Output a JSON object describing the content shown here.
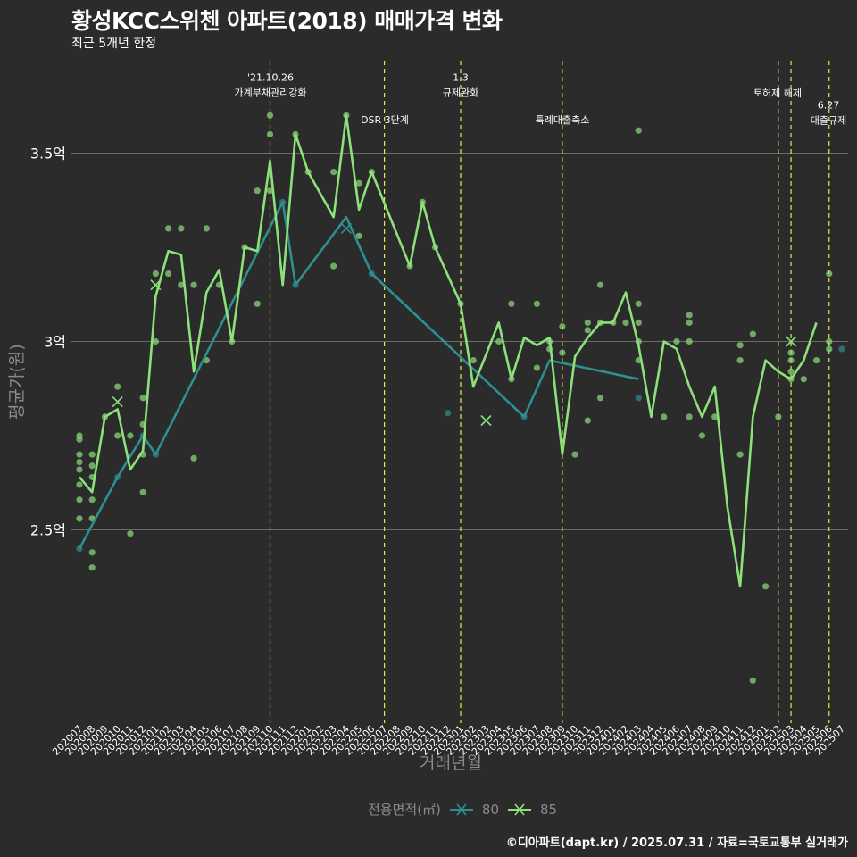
{
  "title": "황성KCC스위첸 아파트(2018) 매매가격 변화",
  "subtitle": "최근 5개년 한정",
  "caption": "©디아파트(dapt.kr) / 2025.07.31 / 자료=국토교통부 실거래가",
  "colors": {
    "background": "#2b2b2c",
    "grid": "#6a6a6a",
    "vline": "#e8e84a",
    "s80": "#2e8f8f",
    "s85": "#8de07a",
    "text": "#ffffff",
    "axis_text": "#8a8a8a"
  },
  "chart_data": {
    "type": "line",
    "xlabel": "거래년월",
    "ylabel": "평균가(원)",
    "ylim": [
      2.0,
      3.75
    ],
    "yticks": [
      {
        "value": 2.5,
        "label": "2.5억"
      },
      {
        "value": 3.0,
        "label": "3억"
      },
      {
        "value": 3.5,
        "label": "3.5억"
      }
    ],
    "grid": true,
    "legend": {
      "title": "전용면적(㎡)",
      "position": "bottom",
      "entries": [
        "80",
        "85"
      ]
    },
    "categories": [
      "202007",
      "202008",
      "202009",
      "202010",
      "202011",
      "202012",
      "202101",
      "202102",
      "202103",
      "202104",
      "202105",
      "202106",
      "202107",
      "202108",
      "202109",
      "202110",
      "202111",
      "202112",
      "202201",
      "202202",
      "202203",
      "202204",
      "202205",
      "202206",
      "202207",
      "202208",
      "202209",
      "202210",
      "202211",
      "202212",
      "202301",
      "202302",
      "202303",
      "202304",
      "202305",
      "202306",
      "202307",
      "202308",
      "202309",
      "202310",
      "202311",
      "202312",
      "202401",
      "202402",
      "202403",
      "202404",
      "202405",
      "202406",
      "202407",
      "202408",
      "202409",
      "202410",
      "202411",
      "202412",
      "202501",
      "202502",
      "202503",
      "202504",
      "202505",
      "202506",
      "202507"
    ],
    "events": [
      {
        "x": "202110",
        "label_lines": [
          "'21.10.26",
          "가계부채관리강화"
        ]
      },
      {
        "x": "202207",
        "label_lines": [
          "DSR 3단계"
        ]
      },
      {
        "x": "202301",
        "label_lines": [
          "1.3",
          "규제완화"
        ]
      },
      {
        "x": "202309",
        "label_lines": [
          "특례대출축소"
        ]
      },
      {
        "x": "202502",
        "label_lines": [
          "토허제 해제"
        ]
      },
      {
        "x": "202503",
        "label_lines": []
      },
      {
        "x": "202506",
        "label_lines": [
          "6.27",
          "대출규제"
        ]
      }
    ],
    "series": [
      {
        "name": "80",
        "line": [
          [
            "202007",
            2.45
          ],
          [
            "202010",
            2.64
          ],
          [
            "202012",
            2.75
          ],
          [
            "202101",
            2.7
          ],
          [
            "202111",
            3.37
          ],
          [
            "202112",
            3.15
          ],
          [
            "202204",
            3.33
          ],
          [
            "202206",
            3.18
          ],
          [
            "202306",
            2.8
          ],
          [
            "202308",
            2.95
          ],
          [
            "202403",
            2.9
          ]
        ],
        "points": [
          [
            "202007",
            2.45
          ],
          [
            "202010",
            2.64
          ],
          [
            "202012",
            2.75
          ],
          [
            "202101",
            2.7
          ],
          [
            "202111",
            3.37
          ],
          [
            "202112",
            3.15
          ],
          [
            "202206",
            3.18
          ],
          [
            "202212",
            2.81
          ],
          [
            "202306",
            2.8
          ],
          [
            "202403",
            2.85
          ],
          [
            "202507",
            2.98
          ]
        ],
        "cross_points": [
          [
            "202204",
            3.3
          ],
          [
            "202303",
            2.79
          ]
        ]
      },
      {
        "name": "85",
        "line": [
          [
            "202007",
            2.64
          ],
          [
            "202008",
            2.6
          ],
          [
            "202009",
            2.8
          ],
          [
            "202010",
            2.82
          ],
          [
            "202011",
            2.66
          ],
          [
            "202012",
            2.71
          ],
          [
            "202101",
            3.12
          ],
          [
            "202102",
            3.24
          ],
          [
            "202103",
            3.23
          ],
          [
            "202104",
            2.92
          ],
          [
            "202105",
            3.13
          ],
          [
            "202106",
            3.19
          ],
          [
            "202107",
            3.0
          ],
          [
            "202108",
            3.25
          ],
          [
            "202109",
            3.24
          ],
          [
            "202110",
            3.48
          ],
          [
            "202111",
            3.15
          ],
          [
            "202112",
            3.55
          ],
          [
            "202201",
            3.45
          ],
          [
            "202202",
            3.39
          ],
          [
            "202203",
            3.33
          ],
          [
            "202204",
            3.6
          ],
          [
            "202205",
            3.35
          ],
          [
            "202206",
            3.45
          ],
          [
            "202209",
            3.2
          ],
          [
            "202210",
            3.37
          ],
          [
            "202211",
            3.25
          ],
          [
            "202301",
            3.1
          ],
          [
            "202302",
            2.88
          ],
          [
            "202304",
            3.05
          ],
          [
            "202305",
            2.9
          ],
          [
            "202306",
            3.01
          ],
          [
            "202307",
            2.99
          ],
          [
            "202308",
            3.01
          ],
          [
            "202309",
            2.7
          ],
          [
            "202310",
            2.96
          ],
          [
            "202311",
            3.01
          ],
          [
            "202312",
            3.05
          ],
          [
            "202401",
            3.05
          ],
          [
            "202402",
            3.13
          ],
          [
            "202403",
            2.99
          ],
          [
            "202404",
            2.8
          ],
          [
            "202405",
            3.0
          ],
          [
            "202406",
            2.98
          ],
          [
            "202407",
            2.88
          ],
          [
            "202408",
            2.8
          ],
          [
            "202409",
            2.88
          ],
          [
            "202410",
            2.56
          ],
          [
            "202411",
            2.35
          ],
          [
            "202412",
            2.8
          ],
          [
            "202501",
            2.95
          ],
          [
            "202502",
            2.92
          ],
          [
            "202503",
            2.9
          ],
          [
            "202504",
            2.95
          ],
          [
            "202505",
            3.05
          ]
        ],
        "points": [
          [
            "202007",
            2.75
          ],
          [
            "202007",
            2.74
          ],
          [
            "202007",
            2.7
          ],
          [
            "202007",
            2.68
          ],
          [
            "202007",
            2.66
          ],
          [
            "202007",
            2.62
          ],
          [
            "202007",
            2.58
          ],
          [
            "202007",
            2.53
          ],
          [
            "202008",
            2.7
          ],
          [
            "202008",
            2.67
          ],
          [
            "202008",
            2.64
          ],
          [
            "202008",
            2.58
          ],
          [
            "202008",
            2.53
          ],
          [
            "202008",
            2.44
          ],
          [
            "202008",
            2.4
          ],
          [
            "202009",
            2.8
          ],
          [
            "202010",
            2.88
          ],
          [
            "202010",
            2.75
          ],
          [
            "202011",
            2.75
          ],
          [
            "202011",
            2.49
          ],
          [
            "202012",
            2.85
          ],
          [
            "202012",
            2.78
          ],
          [
            "202012",
            2.7
          ],
          [
            "202012",
            2.6
          ],
          [
            "202101",
            3.18
          ],
          [
            "202101",
            3.0
          ],
          [
            "202102",
            3.3
          ],
          [
            "202102",
            3.18
          ],
          [
            "202103",
            3.3
          ],
          [
            "202103",
            3.15
          ],
          [
            "202104",
            3.15
          ],
          [
            "202104",
            2.69
          ],
          [
            "202105",
            3.3
          ],
          [
            "202105",
            2.95
          ],
          [
            "202106",
            3.15
          ],
          [
            "202107",
            3.0
          ],
          [
            "202108",
            3.25
          ],
          [
            "202109",
            3.4
          ],
          [
            "202109",
            3.1
          ],
          [
            "202110",
            3.6
          ],
          [
            "202110",
            3.55
          ],
          [
            "202110",
            3.4
          ],
          [
            "202112",
            3.55
          ],
          [
            "202201",
            3.45
          ],
          [
            "202203",
            3.45
          ],
          [
            "202203",
            3.2
          ],
          [
            "202204",
            3.6
          ],
          [
            "202205",
            3.42
          ],
          [
            "202205",
            3.28
          ],
          [
            "202206",
            3.45
          ],
          [
            "202209",
            3.2
          ],
          [
            "202210",
            3.37
          ],
          [
            "202211",
            3.25
          ],
          [
            "202301",
            3.1
          ],
          [
            "202302",
            2.95
          ],
          [
            "202304",
            3.0
          ],
          [
            "202305",
            3.1
          ],
          [
            "202305",
            2.9
          ],
          [
            "202307",
            3.1
          ],
          [
            "202307",
            2.93
          ],
          [
            "202308",
            3.0
          ],
          [
            "202308",
            2.98
          ],
          [
            "202309",
            3.04
          ],
          [
            "202309",
            2.97
          ],
          [
            "202310",
            2.7
          ],
          [
            "202311",
            3.05
          ],
          [
            "202311",
            3.03
          ],
          [
            "202311",
            2.79
          ],
          [
            "202312",
            3.15
          ],
          [
            "202312",
            3.05
          ],
          [
            "202312",
            2.85
          ],
          [
            "202401",
            3.05
          ],
          [
            "202402",
            3.05
          ],
          [
            "202403",
            3.56
          ],
          [
            "202403",
            3.1
          ],
          [
            "202403",
            3.05
          ],
          [
            "202403",
            3.0
          ],
          [
            "202403",
            2.95
          ],
          [
            "202405",
            2.8
          ],
          [
            "202406",
            3.0
          ],
          [
            "202407",
            3.07
          ],
          [
            "202407",
            3.05
          ],
          [
            "202407",
            3.0
          ],
          [
            "202407",
            2.8
          ],
          [
            "202408",
            2.75
          ],
          [
            "202409",
            2.8
          ],
          [
            "202411",
            2.99
          ],
          [
            "202411",
            2.95
          ],
          [
            "202411",
            2.7
          ],
          [
            "202412",
            3.02
          ],
          [
            "202412",
            2.1
          ],
          [
            "202501",
            2.35
          ],
          [
            "202502",
            2.8
          ],
          [
            "202503",
            2.97
          ],
          [
            "202503",
            2.95
          ],
          [
            "202503",
            2.92
          ],
          [
            "202503",
            2.9
          ],
          [
            "202504",
            2.9
          ],
          [
            "202505",
            2.95
          ],
          [
            "202506",
            3.18
          ],
          [
            "202506",
            3.0
          ],
          [
            "202506",
            2.98
          ]
        ],
        "cross_points": [
          [
            "202010",
            2.84
          ],
          [
            "202101",
            3.15
          ],
          [
            "202303",
            2.79
          ],
          [
            "202503",
            3.0
          ]
        ]
      }
    ]
  }
}
